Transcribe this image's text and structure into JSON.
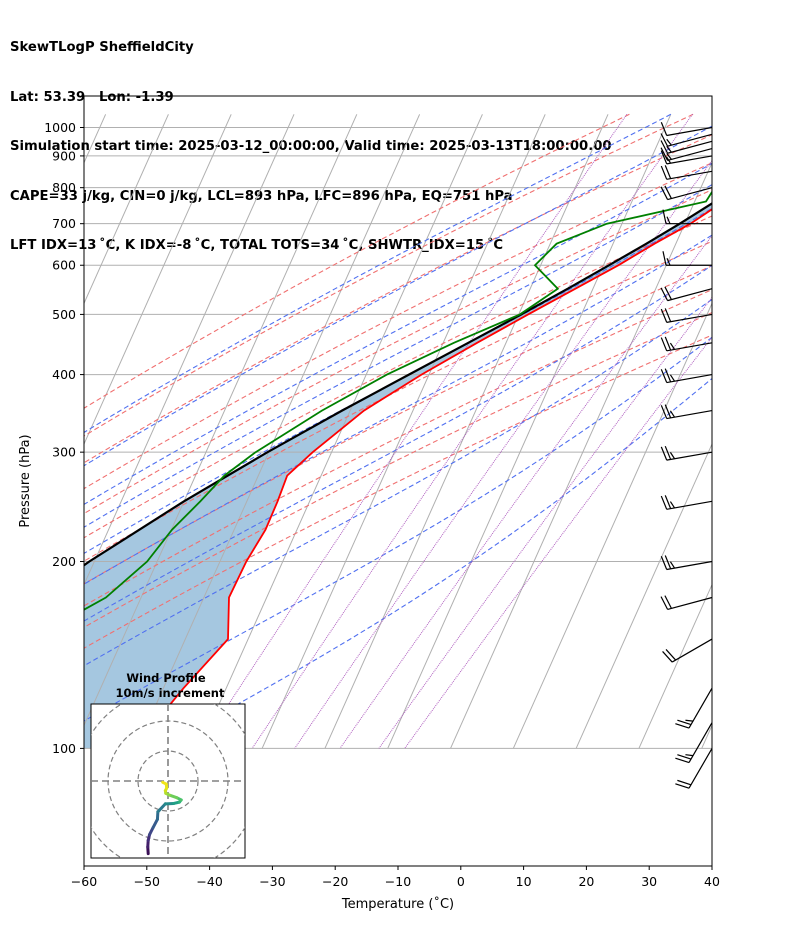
{
  "header": {
    "line1": "SkewTLogP SheffieldCity",
    "line2": "Lat: 53.39   Lon: -1.39",
    "line3": "Simulation start time: 2025-03-12_00:00:00, Valid time: 2025-03-13T18:00:00.00",
    "line4": "CAPE=33 j/kg, CIN=0 j/kg, LCL=893 hPa, LFC=896 hPa, EQ=751 hPa",
    "line5": "LFT IDX=13 ˚C, K IDX=-8 ˚C, TOTAL TOTS=34 ˚C, SHWTR_IDX=15 ˚C"
  },
  "chart_data": {
    "type": "skew-t",
    "xlabel": "Temperature (˚C)",
    "ylabel": "Pressure (hPa)",
    "xlim": [
      -60,
      40
    ],
    "ylim": [
      1050,
      100
    ],
    "y_scale": "log",
    "x_ticks": [
      -60,
      -50,
      -40,
      -30,
      -20,
      -10,
      0,
      10,
      20,
      30,
      40
    ],
    "y_ticks": [
      1000,
      900,
      800,
      700,
      600,
      500,
      400,
      300,
      200,
      100
    ],
    "grid": true,
    "temperature": {
      "color": "#ff0000",
      "points": [
        [
          1000,
          6.4
        ],
        [
          975,
          4.6
        ],
        [
          950,
          3.2
        ],
        [
          925,
          1.9
        ],
        [
          900,
          0.3
        ],
        [
          850,
          -2.6
        ],
        [
          800,
          -4.8
        ],
        [
          750,
          -6.0
        ],
        [
          700,
          -9.1
        ],
        [
          650,
          -13.4
        ],
        [
          600,
          -17.6
        ],
        [
          550,
          -22.8
        ],
        [
          500,
          -28.5
        ],
        [
          450,
          -34.6
        ],
        [
          400,
          -41.2
        ],
        [
          350,
          -47.8
        ],
        [
          300,
          -53.0
        ],
        [
          275,
          -55.4
        ],
        [
          250,
          -55.1
        ],
        [
          225,
          -55.0
        ],
        [
          200,
          -55.8
        ],
        [
          175,
          -56.0
        ],
        [
          150,
          -53.2
        ],
        [
          125,
          -56.8
        ],
        [
          100,
          -60.4
        ]
      ]
    },
    "dewpoint": {
      "color": "#008000",
      "points": [
        [
          1000,
          0.1
        ],
        [
          950,
          -0.7
        ],
        [
          900,
          -2.3
        ],
        [
          850,
          -7.6
        ],
        [
          800,
          -7.8
        ],
        [
          760,
          -8.2
        ],
        [
          700,
          -22.4
        ],
        [
          650,
          -29.0
        ],
        [
          600,
          -30.9
        ],
        [
          550,
          -25.6
        ],
        [
          500,
          -29.8
        ],
        [
          450,
          -38.3
        ],
        [
          400,
          -46.7
        ],
        [
          350,
          -54.5
        ],
        [
          300,
          -62.1
        ],
        [
          275,
          -65.4
        ],
        [
          250,
          -67.4
        ],
        [
          225,
          -69.9
        ],
        [
          200,
          -71.6
        ],
        [
          175,
          -75.6
        ],
        [
          160,
          -80.8
        ],
        [
          150,
          -81.0
        ],
        [
          125,
          -82.0
        ],
        [
          100,
          -85.8
        ]
      ]
    },
    "parcel": {
      "color": "#000000",
      "points": [
        [
          1000,
          6.4
        ],
        [
          970,
          4.1
        ],
        [
          940,
          1.6
        ],
        [
          900,
          0.9
        ],
        [
          850,
          -1.7
        ],
        [
          800,
          -4.4
        ],
        [
          750,
          -7.4
        ],
        [
          700,
          -10.8
        ],
        [
          650,
          -14.7
        ],
        [
          600,
          -19.1
        ],
        [
          550,
          -24.0
        ],
        [
          500,
          -29.6
        ],
        [
          450,
          -36.0
        ],
        [
          400,
          -43.2
        ],
        [
          350,
          -51.3
        ],
        [
          300,
          -60.2
        ],
        [
          250,
          -70.0
        ],
        [
          200,
          -80.8
        ],
        [
          150,
          -92.6
        ],
        [
          100,
          -106.5
        ]
      ]
    },
    "shaded_area": {
      "color": "#a0c4de",
      "between": [
        "temperature",
        "parcel"
      ]
    },
    "dry_adiabats_theta_c": [
      -30,
      -20,
      -10,
      0,
      10,
      20,
      30,
      40,
      50,
      60,
      70
    ],
    "moist_adiabats_start_c": [
      -20,
      -10,
      0,
      5,
      10,
      15,
      20,
      25,
      30,
      35
    ],
    "mixing_ratio_gkg": [
      0.4,
      1,
      2,
      4,
      7,
      10
    ],
    "wind_barbs": [
      {
        "p": 1000,
        "speed_kt": 14,
        "dir": 260
      },
      {
        "p": 975,
        "speed_kt": 15,
        "dir": 255
      },
      {
        "p": 950,
        "speed_kt": 17,
        "dir": 255
      },
      {
        "p": 925,
        "speed_kt": 18,
        "dir": 255
      },
      {
        "p": 900,
        "speed_kt": 19,
        "dir": 260
      },
      {
        "p": 850,
        "speed_kt": 20,
        "dir": 260
      },
      {
        "p": 800,
        "speed_kt": 20,
        "dir": 255
      },
      {
        "p": 700,
        "speed_kt": 15,
        "dir": 270
      },
      {
        "p": 600,
        "speed_kt": 15,
        "dir": 270
      },
      {
        "p": 550,
        "speed_kt": 20,
        "dir": 255
      },
      {
        "p": 500,
        "speed_kt": 20,
        "dir": 260
      },
      {
        "p": 450,
        "speed_kt": 25,
        "dir": 260
      },
      {
        "p": 400,
        "speed_kt": 25,
        "dir": 260
      },
      {
        "p": 350,
        "speed_kt": 25,
        "dir": 260
      },
      {
        "p": 300,
        "speed_kt": 25,
        "dir": 260
      },
      {
        "p": 250,
        "speed_kt": 25,
        "dir": 260
      },
      {
        "p": 200,
        "speed_kt": 25,
        "dir": 260
      },
      {
        "p": 175,
        "speed_kt": 20,
        "dir": 255
      },
      {
        "p": 150,
        "speed_kt": 20,
        "dir": 240
      },
      {
        "p": 125,
        "speed_kt": 25,
        "dir": 210
      },
      {
        "p": 110,
        "speed_kt": 25,
        "dir": 210
      },
      {
        "p": 100,
        "speed_kt": 20,
        "dir": 210
      }
    ],
    "inset": {
      "title_line1": "Wind Profile",
      "title_line2": "10m/s increment",
      "hodograph": [
        [
          -4.5,
          -16.5
        ],
        [
          -4.6,
          -15.0
        ],
        [
          -4.5,
          -13.5
        ],
        [
          -4.2,
          -12.2
        ],
        [
          -3.4,
          -10.6
        ],
        [
          -2.4,
          -8.7
        ],
        [
          -2.3,
          -7.0
        ],
        [
          -0.6,
          -5.2
        ],
        [
          1.3,
          -5.1
        ],
        [
          2.6,
          -4.8
        ],
        [
          3.0,
          -4.3
        ],
        [
          2.0,
          -3.8
        ],
        [
          0.3,
          -3.2
        ],
        [
          -0.5,
          -2.8
        ],
        [
          -0.6,
          -2.2
        ],
        [
          -0.3,
          -1.6
        ],
        [
          -0.4,
          -0.7
        ],
        [
          -1.2,
          -0.3
        ]
      ]
    }
  }
}
